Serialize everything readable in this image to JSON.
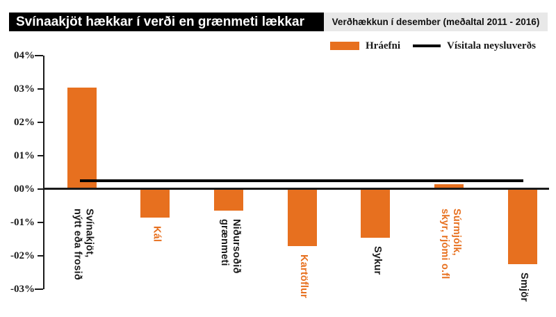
{
  "header": {
    "title": "Svínaakjöt hækkar í verði en grænmeti lækkar",
    "subtitle": "Verðhækkun í desember (meðaltal 2011 - 2016)"
  },
  "legend": {
    "items": [
      {
        "label": "Hráefni",
        "swatch": "bar"
      },
      {
        "label": "Vísitala neysluverðs",
        "swatch": "line"
      }
    ]
  },
  "colors": {
    "orange": "#E7701F",
    "black": "#000000",
    "header_gray": "#E8E8E8"
  },
  "chart_data": {
    "type": "bar",
    "title": "Svínaakjöt hækkar í verði en grænmeti lækkar",
    "subtitle": "Verðhækkun í desember (meðaltal 2011 - 2016)",
    "series_name": "Hráefni",
    "unit": "%",
    "categories": [
      [
        "Svínakjöt,",
        "nýtt eða frosið"
      ],
      [
        "Kál"
      ],
      [
        "Niðursoðið",
        "grænmeti"
      ],
      [
        "Kartöflur"
      ],
      [
        "Sykur"
      ],
      [
        "Súrmjólk,",
        "skyr, rjómi o.fl"
      ],
      [
        "Smjör"
      ]
    ],
    "values": [
      3.05,
      -0.85,
      -0.65,
      -1.7,
      -1.45,
      0.15,
      -2.25
    ],
    "label_colors": [
      "black",
      "orange",
      "black",
      "orange",
      "black",
      "orange",
      "black"
    ],
    "reference_line": {
      "label": "Vísitala neysluverðs",
      "value": 0.25
    },
    "y_ticks": [
      "04%",
      "03%",
      "02%",
      "01%",
      "00%",
      "-01%",
      "-02%",
      "-03%"
    ],
    "y_tick_values": [
      4,
      3,
      2,
      1,
      0,
      -1,
      -2,
      -3
    ],
    "ylim": [
      -3,
      4
    ],
    "grid": false,
    "legend_position": "top-right",
    "colors": {
      "bar": "#E7701F",
      "axis": "#1a1a1a"
    }
  }
}
